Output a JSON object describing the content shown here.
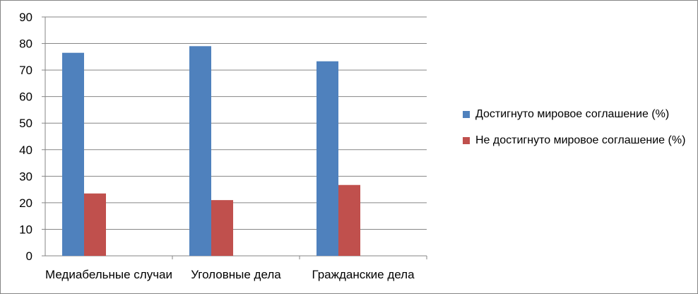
{
  "chart_data": {
    "type": "bar",
    "categories": [
      "Медиабельные случаи",
      "Уголовные дела",
      "Гражданские дела"
    ],
    "series": [
      {
        "name": "Достигнуто мировое соглашение (%)",
        "values": [
          76.5,
          79,
          73.3
        ],
        "color": "#4F81BD"
      },
      {
        "name": "Не достигнуто мировое соглашение (%)",
        "values": [
          23.5,
          21,
          26.7
        ],
        "color": "#C0504D"
      }
    ],
    "ylim": [
      0,
      90
    ],
    "yticks": [
      "0",
      "10",
      "20",
      "30",
      "40",
      "50",
      "60",
      "70",
      "80",
      "90"
    ],
    "grid": true,
    "legend_position": "right"
  }
}
